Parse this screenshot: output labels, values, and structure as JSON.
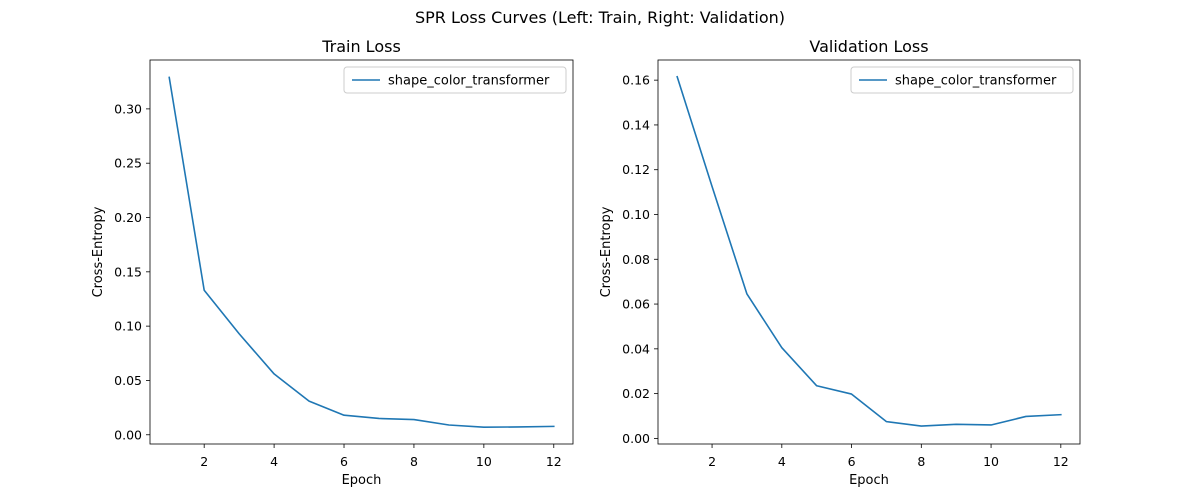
{
  "figure": {
    "suptitle": "SPR Loss Curves (Left: Train, Right: Validation)"
  },
  "colors": {
    "series": "#1f77b4"
  },
  "chart_data": [
    {
      "type": "line",
      "title": "Train Loss",
      "xlabel": "Epoch",
      "ylabel": "Cross-Entropy",
      "xlim": [
        0.45,
        12.55
      ],
      "ylim": [
        -0.0085,
        0.345
      ],
      "xticks": [
        2,
        4,
        6,
        8,
        10,
        12
      ],
      "yticks": [
        0.0,
        0.05,
        0.1,
        0.15,
        0.2,
        0.25,
        0.3
      ],
      "ytick_labels": [
        "0.00",
        "0.05",
        "0.10",
        "0.15",
        "0.20",
        "0.25",
        "0.30"
      ],
      "grid": false,
      "legend_position": "upper right",
      "series": [
        {
          "name": "shape_color_transformer",
          "x": [
            1,
            2,
            3,
            4,
            5,
            6,
            7,
            8,
            9,
            10,
            11,
            12
          ],
          "y": [
            0.329,
            0.133,
            0.093,
            0.056,
            0.031,
            0.018,
            0.015,
            0.014,
            0.009,
            0.007,
            0.0072,
            0.0077
          ]
        }
      ]
    },
    {
      "type": "line",
      "title": "Validation Loss",
      "xlabel": "Epoch",
      "ylabel": "Cross-Entropy",
      "xlim": [
        0.45,
        12.55
      ],
      "ylim": [
        -0.0025,
        0.169
      ],
      "xticks": [
        2,
        4,
        6,
        8,
        10,
        12
      ],
      "yticks": [
        0.0,
        0.02,
        0.04,
        0.06,
        0.08,
        0.1,
        0.12,
        0.14,
        0.16
      ],
      "ytick_labels": [
        "0.00",
        "0.02",
        "0.04",
        "0.06",
        "0.08",
        "0.10",
        "0.12",
        "0.14",
        "0.16"
      ],
      "grid": false,
      "legend_position": "upper right",
      "series": [
        {
          "name": "shape_color_transformer",
          "x": [
            1,
            2,
            3,
            4,
            5,
            6,
            7,
            8,
            9,
            10,
            11,
            12
          ],
          "y": [
            0.1615,
            0.1125,
            0.0645,
            0.0405,
            0.0235,
            0.0198,
            0.0075,
            0.0055,
            0.0063,
            0.006,
            0.0098,
            0.0106
          ]
        }
      ]
    }
  ]
}
